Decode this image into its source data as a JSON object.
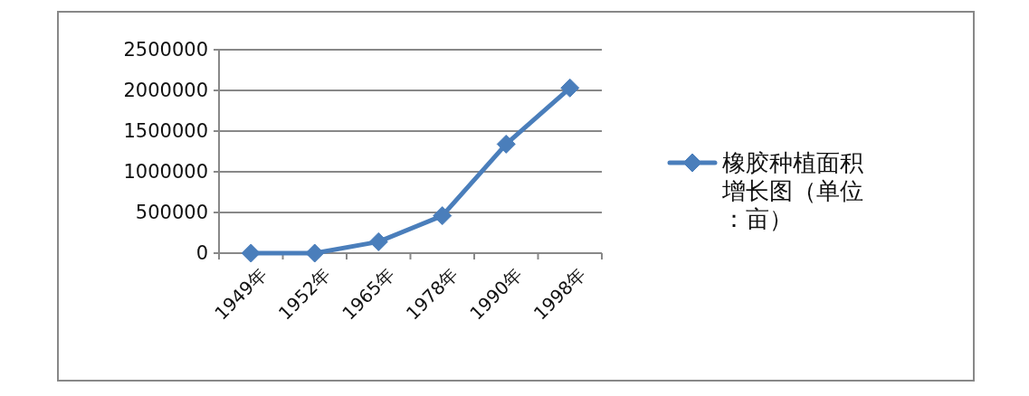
{
  "chart_data": {
    "type": "line",
    "categories": [
      "1949年",
      "1952年",
      "1965年",
      "1978年",
      "1990年",
      "1998年"
    ],
    "series": [
      {
        "name": "橡胶种植面积增长图（单位：亩）",
        "color": "#4a7ebb",
        "values": [
          0,
          0,
          140000,
          460000,
          1340000,
          2030000
        ]
      }
    ],
    "ylim": [
      0,
      2500000
    ],
    "yticks": [
      0,
      500000,
      1000000,
      1500000,
      2000000,
      2500000
    ],
    "grid": "y",
    "legend": "right",
    "marker": "diamond",
    "line_style": "solid"
  }
}
